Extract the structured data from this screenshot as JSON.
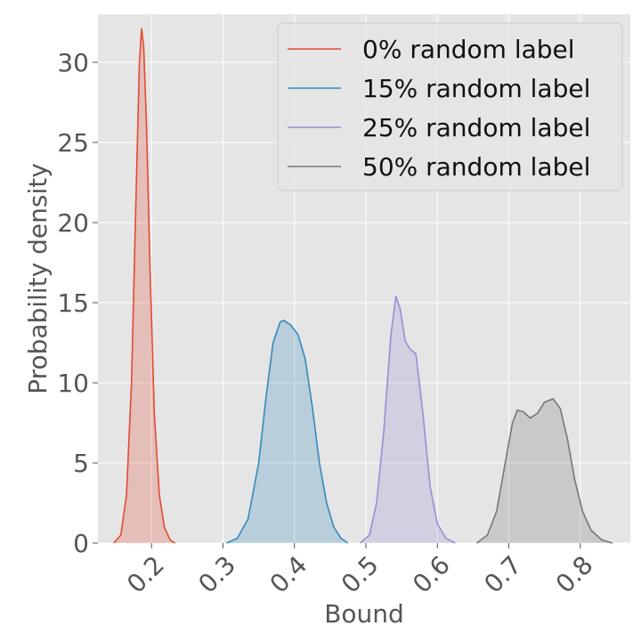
{
  "chart_data": {
    "type": "area",
    "title": "",
    "xlabel": "Bound",
    "ylabel": "Probability density",
    "xlim": [
      0.125,
      0.87
    ],
    "ylim": [
      0,
      33
    ],
    "x_ticks": [
      0.2,
      0.3,
      0.4,
      0.5,
      0.6,
      0.7,
      0.8
    ],
    "x_tick_labels": [
      "0.2",
      "0.3",
      "0.4",
      "0.5",
      "0.6",
      "0.7",
      "0.8"
    ],
    "y_ticks": [
      0,
      5,
      10,
      15,
      20,
      25,
      30
    ],
    "y_tick_labels": [
      "0",
      "5",
      "10",
      "15",
      "20",
      "25",
      "30"
    ],
    "grid": true,
    "legend_position": "top-right",
    "series": [
      {
        "name": "0% random label",
        "color": "#E24A33",
        "points": [
          [
            0.147,
            0
          ],
          [
            0.157,
            0.5
          ],
          [
            0.165,
            3
          ],
          [
            0.172,
            10
          ],
          [
            0.178,
            21
          ],
          [
            0.183,
            30
          ],
          [
            0.186,
            32.1
          ],
          [
            0.189,
            31
          ],
          [
            0.193,
            26
          ],
          [
            0.198,
            17
          ],
          [
            0.204,
            8
          ],
          [
            0.211,
            3
          ],
          [
            0.218,
            1
          ],
          [
            0.226,
            0.2
          ],
          [
            0.233,
            0
          ]
        ]
      },
      {
        "name": "15% random label",
        "color": "#348ABD",
        "points": [
          [
            0.305,
            0
          ],
          [
            0.32,
            0.3
          ],
          [
            0.335,
            1.5
          ],
          [
            0.35,
            5
          ],
          [
            0.36,
            9
          ],
          [
            0.37,
            12.5
          ],
          [
            0.38,
            13.8
          ],
          [
            0.385,
            13.9
          ],
          [
            0.395,
            13.6
          ],
          [
            0.405,
            13
          ],
          [
            0.415,
            11.5
          ],
          [
            0.425,
            8.5
          ],
          [
            0.435,
            5
          ],
          [
            0.445,
            2.5
          ],
          [
            0.455,
            1
          ],
          [
            0.465,
            0.3
          ],
          [
            0.475,
            0
          ]
        ]
      },
      {
        "name": "25% random label",
        "color": "#988ED5",
        "points": [
          [
            0.492,
            0
          ],
          [
            0.505,
            0.5
          ],
          [
            0.515,
            2.5
          ],
          [
            0.525,
            7
          ],
          [
            0.535,
            13
          ],
          [
            0.542,
            15.4
          ],
          [
            0.548,
            14.6
          ],
          [
            0.555,
            12.6
          ],
          [
            0.562,
            12.1
          ],
          [
            0.57,
            11.8
          ],
          [
            0.58,
            8
          ],
          [
            0.59,
            3.5
          ],
          [
            0.6,
            1.2
          ],
          [
            0.612,
            0.3
          ],
          [
            0.625,
            0
          ]
        ]
      },
      {
        "name": "50% random label",
        "color": "#777777",
        "points": [
          [
            0.655,
            0
          ],
          [
            0.67,
            0.5
          ],
          [
            0.683,
            2
          ],
          [
            0.695,
            5
          ],
          [
            0.705,
            7.5
          ],
          [
            0.712,
            8.3
          ],
          [
            0.72,
            8.2
          ],
          [
            0.73,
            7.8
          ],
          [
            0.74,
            8.1
          ],
          [
            0.75,
            8.8
          ],
          [
            0.762,
            9
          ],
          [
            0.772,
            8.4
          ],
          [
            0.782,
            6.5
          ],
          [
            0.792,
            4
          ],
          [
            0.803,
            2
          ],
          [
            0.815,
            0.8
          ],
          [
            0.83,
            0.2
          ],
          [
            0.845,
            0
          ]
        ]
      }
    ]
  }
}
